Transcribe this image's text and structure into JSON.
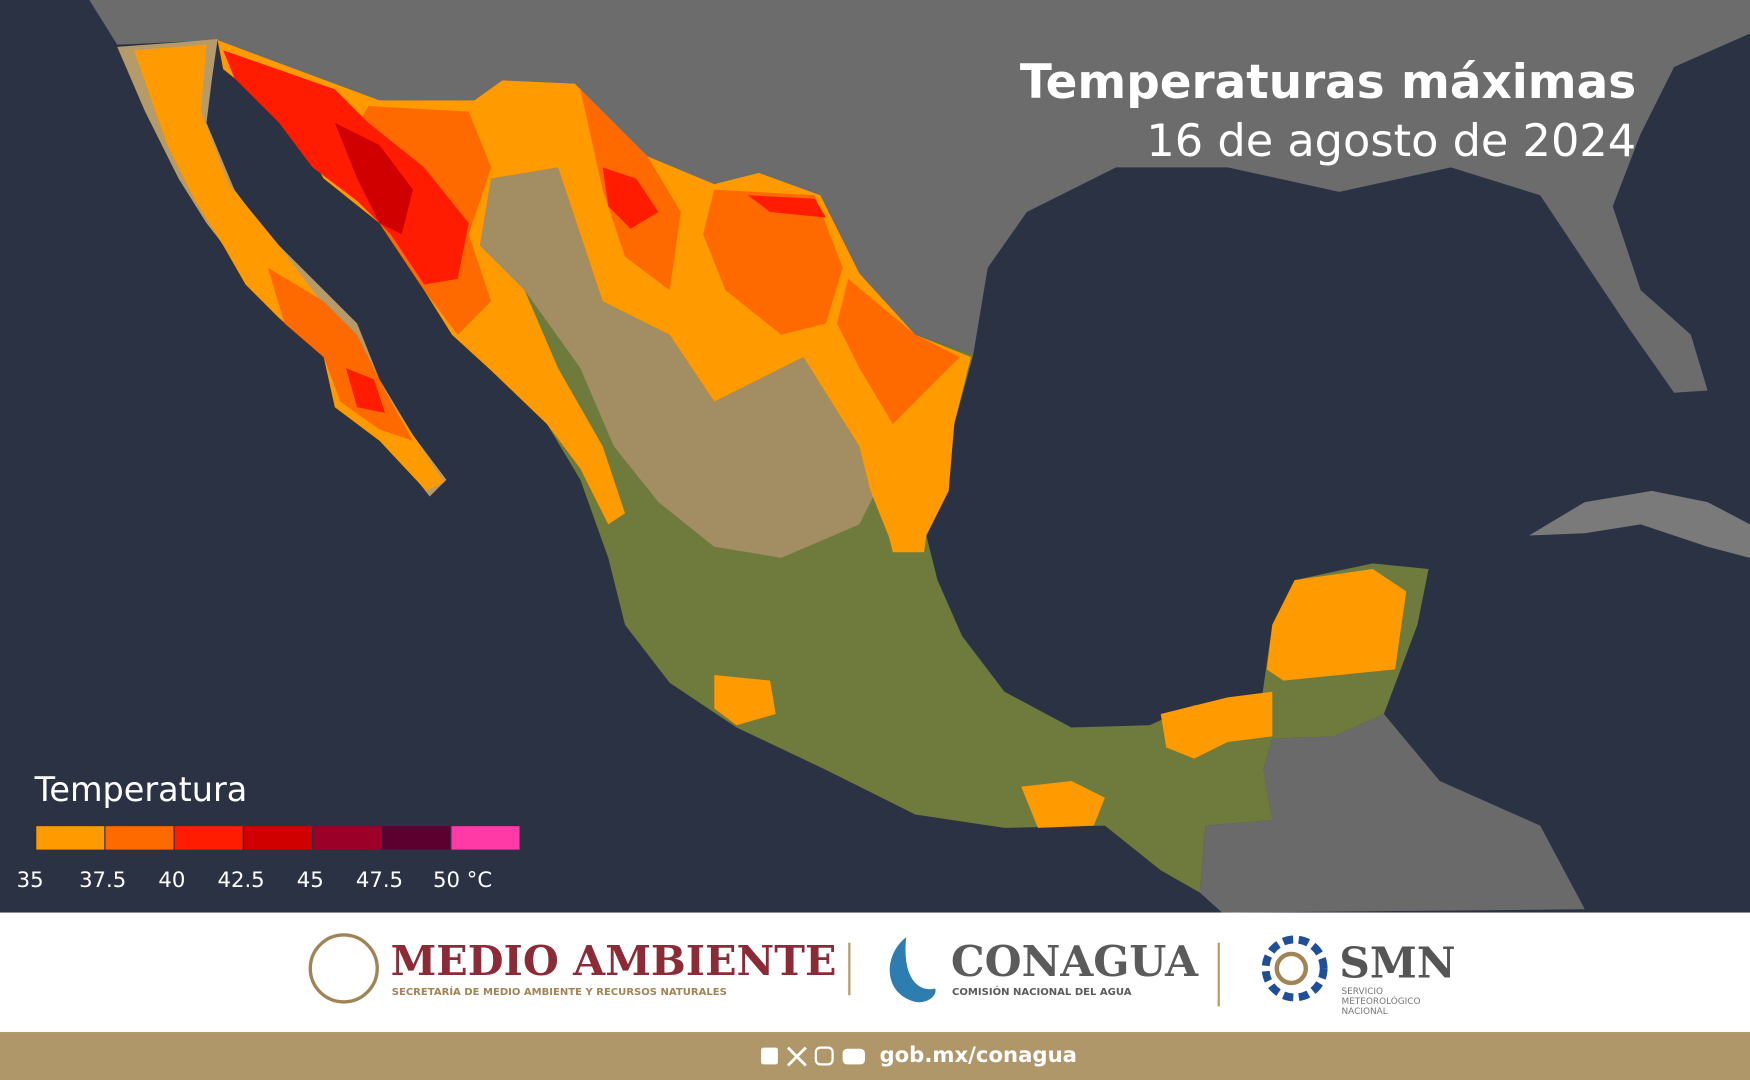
{
  "header": {
    "title": "Temperaturas máximas",
    "date": "16 de agosto de 2024"
  },
  "legend": {
    "title": "Temperatura",
    "colors": [
      "#ff9a00",
      "#ff6a00",
      "#ff1c00",
      "#d10000",
      "#9a0028",
      "#5c0030",
      "#ff3aa6"
    ],
    "ticks": [
      35,
      37.5,
      40,
      42.5,
      45,
      47.5,
      {
        "value": 50,
        "label": "50 °C"
      }
    ]
  },
  "footer": {
    "medio_ambiente": {
      "name": "MEDIO AMBIENTE",
      "subtitle": "SECRETARÍA DE MEDIO AMBIENTE Y RECURSOS NATURALES"
    },
    "conagua": {
      "name": "CONAGUA",
      "subtitle": "COMISIÓN NACIONAL DEL AGUA"
    },
    "smn": {
      "name": "SMN",
      "subtitle_lines": [
        "SERVICIO",
        "METEOROLÓGICO",
        "NACIONAL"
      ]
    },
    "url": "gob.mx/conagua"
  }
}
